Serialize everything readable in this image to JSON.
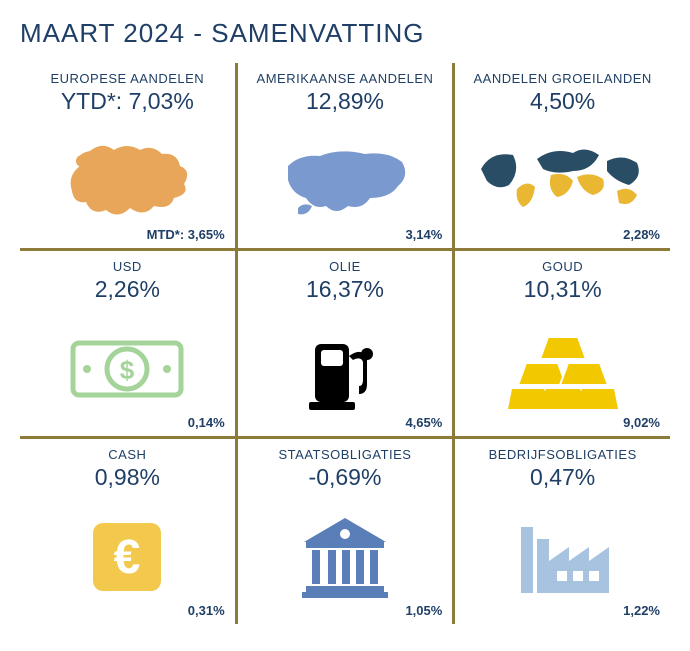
{
  "title": "MAART 2024 - SAMENVATTING",
  "divider_color": "#8c7b39",
  "text_color": "#1f3f66",
  "cells": [
    {
      "label": "EUROPESE AANDELEN",
      "main_prefix": "YTD*: ",
      "main": "7,03%",
      "foot_prefix": "MTD*: ",
      "foot": "3,65%",
      "icon": "europe",
      "icon_color": "#e8a65a"
    },
    {
      "label": "AMERIKAANSE AANDELEN",
      "main_prefix": "",
      "main": "12,89%",
      "foot_prefix": "",
      "foot": "3,14%",
      "icon": "usa",
      "icon_color": "#7a99cf"
    },
    {
      "label": "AANDELEN GROEILANDEN",
      "main_prefix": "",
      "main": "4,50%",
      "foot_prefix": "",
      "foot": "2,28%",
      "icon": "world",
      "icon_color": "#eab733",
      "icon_color2": "#2a4d66"
    },
    {
      "label": "USD",
      "main_prefix": "",
      "main": "2,26%",
      "foot_prefix": "",
      "foot": "0,14%",
      "icon": "dollar",
      "icon_color": "#a5d49a"
    },
    {
      "label": "OLIE",
      "main_prefix": "",
      "main": "16,37%",
      "foot_prefix": "",
      "foot": "4,65%",
      "icon": "pump",
      "icon_color": "#000000"
    },
    {
      "label": "GOUD",
      "main_prefix": "",
      "main": "10,31%",
      "foot_prefix": "",
      "foot": "9,02%",
      "icon": "gold",
      "icon_color": "#f2c800"
    },
    {
      "label": "CASH",
      "main_prefix": "",
      "main": "0,98%",
      "foot_prefix": "",
      "foot": "0,31%",
      "icon": "euro",
      "icon_color": "#f2c94c"
    },
    {
      "label": "STAATSOBLIGATIES",
      "main_prefix": "",
      "main": "-0,69%",
      "foot_prefix": "",
      "foot": "1,05%",
      "icon": "bank",
      "icon_color": "#5a7fb8"
    },
    {
      "label": "BEDRIJFSOBLIGATIES",
      "main_prefix": "",
      "main": "0,47%",
      "foot_prefix": "",
      "foot": "1,22%",
      "icon": "factory",
      "icon_color": "#a8c3e0"
    }
  ]
}
